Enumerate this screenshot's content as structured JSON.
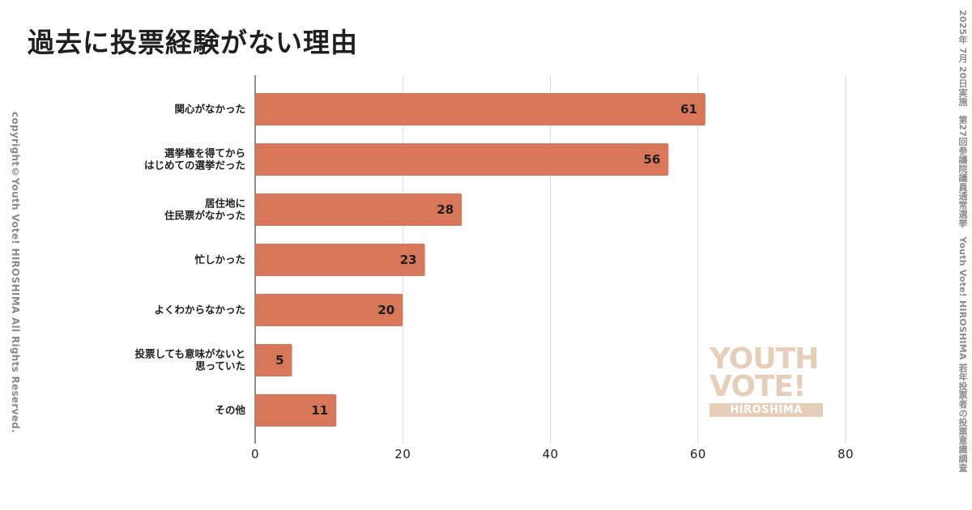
{
  "title": "過去に投票経験がない理由",
  "side_left": "copyright©Youth Vote! HIROSHIMA  All Rights Reserved.",
  "side_right": "2025年 7月 20日実施　第27回参議院議員通常選挙　Youth Vote! HIROSHIMA 若年投票者の投票意識調査",
  "logo": {
    "line1": "YOUTH",
    "line2": "VOTE!",
    "line3": "HIROSHIMA"
  },
  "colors": {
    "bar": "#d8765a",
    "grid": "#d9d9d9",
    "axis": "#444444",
    "logo": "#e6cfb8"
  },
  "chart_data": {
    "type": "bar",
    "orientation": "horizontal",
    "categories": [
      [
        "関心がなかった"
      ],
      [
        "選挙権を得てから",
        "はじめての選挙だった"
      ],
      [
        "居住地に",
        "住民票がなかった"
      ],
      [
        "忙しかった"
      ],
      [
        "よくわからなかった"
      ],
      [
        "投票しても意味がないと",
        "思っていた"
      ],
      [
        "その他"
      ]
    ],
    "values": [
      61,
      56,
      28,
      23,
      20,
      5,
      11
    ],
    "xlim": [
      0,
      80
    ],
    "xticks": [
      0,
      20,
      40,
      60,
      80
    ],
    "grid": true,
    "data_labels": true
  }
}
